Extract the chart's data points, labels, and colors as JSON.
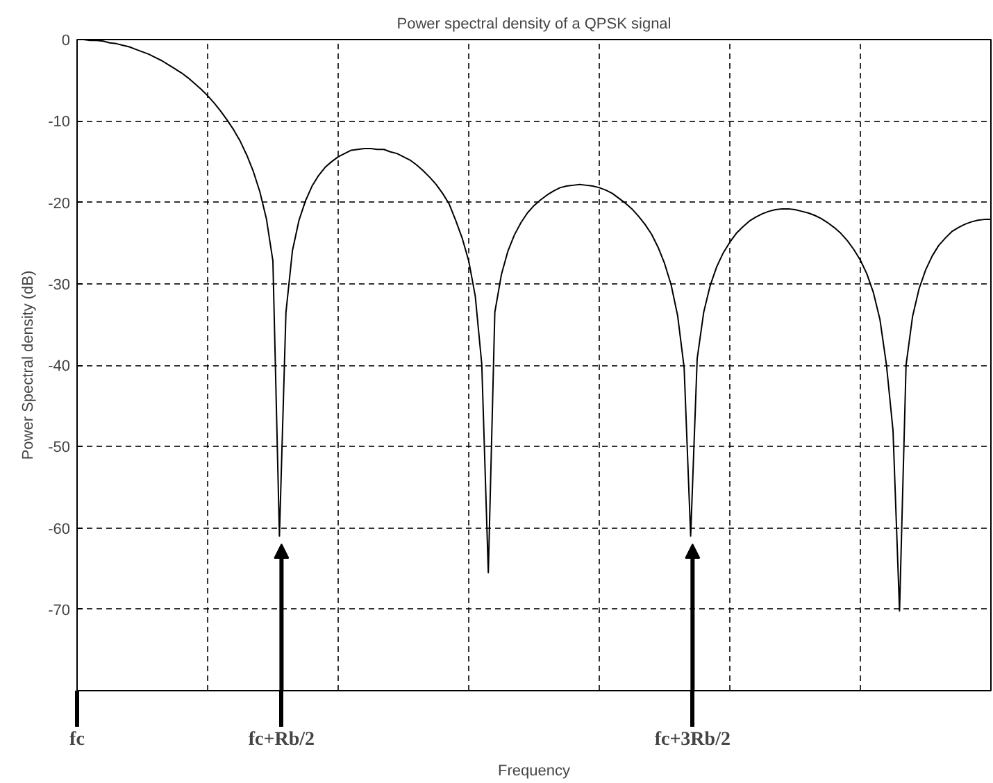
{
  "chart_data": {
    "type": "line",
    "title": "Power spectral density of a QPSK signal",
    "xlabel": "Frequency",
    "ylabel": "Power Spectral density (dB)",
    "categories": [
      null,
      null,
      null,
      null,
      null,
      null,
      null,
      null,
      null,
      null,
      null,
      null,
      null,
      null,
      null,
      null,
      null,
      null,
      null,
      null,
      null,
      null,
      null,
      null,
      null,
      null,
      null,
      null,
      null,
      null,
      null,
      null,
      null,
      null,
      null,
      null,
      null,
      null,
      null,
      null,
      null,
      null,
      null,
      null,
      null,
      null,
      null,
      null,
      null,
      null,
      null,
      null,
      null,
      null,
      null,
      null,
      null,
      null,
      null,
      null,
      null,
      null,
      null,
      null,
      null,
      null,
      null,
      null,
      null,
      null,
      null,
      null,
      null,
      null,
      null,
      null,
      null,
      null,
      null,
      null,
      null,
      null,
      null,
      null,
      null,
      null,
      null,
      null,
      null,
      null,
      null,
      null,
      null,
      null,
      null,
      null,
      null,
      null,
      null,
      null,
      null,
      null,
      null,
      null,
      null,
      null,
      null,
      null,
      null,
      null,
      null,
      null,
      null,
      null,
      null,
      null,
      null,
      null,
      null,
      null,
      null,
      null,
      null,
      null,
      null,
      null,
      null,
      null,
      null,
      null,
      null,
      null,
      null,
      null,
      null,
      null,
      null,
      null,
      null,
      null,
      null
    ],
    "series": [
      {
        "color": "#000000",
        "values": [
          0,
          0,
          -0.1,
          -0.1,
          -0.2,
          -0.4,
          -0.5,
          -0.7,
          -0.9,
          -1.2,
          -1.5,
          -1.8,
          -2.2,
          -2.6,
          -3.1,
          -3.6,
          -4.1,
          -4.7,
          -5.4,
          -6.1,
          -6.9,
          -7.8,
          -8.8,
          -9.9,
          -11.1,
          -12.5,
          -14.2,
          -16.2,
          -18.7,
          -22,
          -27.2,
          -61,
          -33.5,
          -25.9,
          -22.2,
          -19.8,
          -18,
          -16.7,
          -15.7,
          -15,
          -14.4,
          -14,
          -13.6,
          -13.5,
          -13.4,
          -13.4,
          -13.5,
          -13.5,
          -13.8,
          -14,
          -14.4,
          -14.8,
          -15.4,
          -16.1,
          -16.9,
          -17.8,
          -18.9,
          -20.2,
          -22.2,
          -24.4,
          -27.2,
          -31.5,
          -39.9,
          -65.5,
          -33.5,
          -28.9,
          -26,
          -24,
          -22.5,
          -21.3,
          -20.4,
          -19.7,
          -19.1,
          -18.6,
          -18.2,
          -18,
          -17.9,
          -17.8,
          -17.9,
          -18,
          -18.2,
          -18.5,
          -18.9,
          -19.5,
          -20.1,
          -20.8,
          -21.7,
          -22.7,
          -23.9,
          -25.5,
          -27.5,
          -30.1,
          -33.9,
          -40.3,
          -61,
          -39.2,
          -33.5,
          -30.2,
          -27.9,
          -26.2,
          -24.9,
          -23.8,
          -23,
          -22.3,
          -21.8,
          -21.4,
          -21.1,
          -20.9,
          -20.8,
          -20.8,
          -20.9,
          -21.1,
          -21.3,
          -21.6,
          -22,
          -22.5,
          -23.1,
          -23.8,
          -24.7,
          -25.8,
          -27.1,
          -28.8,
          -31.1,
          -34.4,
          -40,
          -48,
          -70.2,
          -40,
          -34,
          -30.6,
          -28.3,
          -26.6,
          -25.3,
          -24.4,
          -23.6,
          -23.1,
          -22.7,
          -22.4,
          -22.2,
          -22.1,
          -22.1
        ]
      }
    ],
    "ylim": [
      -80,
      0
    ],
    "yticks": [
      0,
      -10,
      -20,
      -30,
      -40,
      -50,
      -60,
      -70
    ],
    "grid": true,
    "line_style": "solid",
    "annotations": [
      "fc",
      "fc+Rb/2",
      "fc+3Rb/2"
    ]
  }
}
